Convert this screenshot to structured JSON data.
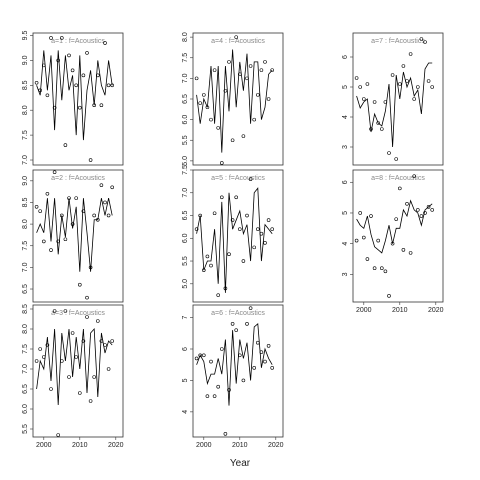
{
  "chart_data": [
    {
      "type": "lineplot",
      "title": "a=1  :  f=Acoustics",
      "x": [
        1998,
        1999,
        2000,
        2001,
        2002,
        2003,
        2004,
        2005,
        2006,
        2007,
        2008,
        2009,
        2010,
        2011,
        2012,
        2013,
        2014,
        2015,
        2016,
        2017,
        2018,
        2019
      ],
      "values": [
        8.5,
        8.3,
        9.2,
        8.4,
        9.1,
        7.6,
        9.2,
        8.2,
        9.1,
        8.4,
        8.7,
        7.5,
        9.1,
        7.4,
        8.4,
        8.8,
        8.1,
        9.0,
        8.5,
        8.3,
        9.0,
        8.5
      ],
      "points": [
        8.55,
        8.4,
        8.9,
        8.3,
        9.45,
        8.05,
        9.0,
        9.45,
        7.3,
        9.1,
        8.8,
        8.5,
        8.05,
        8.7,
        9.15,
        7.0,
        8.1,
        8.7,
        8.1,
        9.35,
        8.5,
        8.5
      ],
      "xlim": [
        1997,
        2022
      ],
      "ylim": [
        6.9,
        9.55
      ],
      "yticks": [
        {
          "value": 7,
          "label": "7.0"
        },
        7.5,
        {
          "value": 8,
          "label": "8.0"
        },
        8.5,
        {
          "value": 9,
          "label": "9.0"
        },
        9.5
      ]
    },
    {
      "type": "lineplot",
      "title": "a=2  :  f=Acoustics",
      "x": [
        1998,
        1999,
        2000,
        2001,
        2002,
        2003,
        2004,
        2005,
        2006,
        2007,
        2008,
        2009,
        2010,
        2011,
        2012,
        2013,
        2014,
        2015,
        2016,
        2017,
        2018,
        2019
      ],
      "values": [
        7.8,
        8.0,
        7.8,
        8.6,
        7.6,
        8.6,
        7.3,
        8.2,
        7.7,
        8.6,
        7.9,
        8.4,
        6.9,
        8.6,
        7.8,
        6.9,
        8.1,
        8.1,
        8.6,
        8.2,
        8.6,
        8.2
      ],
      "points": [
        8.4,
        8.3,
        7.6,
        8.7,
        7.4,
        9.2,
        7.6,
        8.2,
        7.65,
        8.6,
        8.0,
        8.6,
        6.6,
        8.3,
        6.3,
        7.0,
        8.2,
        8.1,
        8.9,
        8.5,
        8.2,
        8.85
      ],
      "xlim": [
        1997,
        2022
      ],
      "ylim": [
        6.2,
        9.25
      ],
      "yticks": [
        6.5,
        {
          "value": 7,
          "label": "7.0"
        },
        7.5,
        {
          "value": 8,
          "label": "8.0"
        },
        8.5,
        {
          "value": 9,
          "label": "9.0"
        }
      ]
    },
    {
      "type": "lineplot",
      "title": "a=3  :  f=Acoustics",
      "x": [
        1998,
        1999,
        2000,
        2001,
        2002,
        2003,
        2004,
        2005,
        2006,
        2007,
        2008,
        2009,
        2010,
        2011,
        2012,
        2013,
        2014,
        2015,
        2016,
        2017,
        2018,
        2019
      ],
      "values": [
        6.5,
        7.2,
        7.0,
        7.8,
        6.7,
        8.0,
        6.1,
        7.9,
        7.2,
        8.0,
        6.8,
        7.8,
        7.0,
        8.0,
        6.4,
        7.9,
        8.0,
        6.3,
        7.9,
        7.4,
        7.7,
        7.6
      ],
      "points": [
        7.2,
        7.5,
        7.3,
        7.6,
        6.5,
        8.45,
        5.35,
        7.2,
        8.45,
        6.8,
        7.9,
        7.3,
        6.4,
        7.7,
        8.3,
        6.2,
        6.8,
        8.2,
        7.7,
        7.6,
        7.0,
        7.7
      ],
      "xlim": [
        1997,
        2022
      ],
      "xticks": [
        2000,
        2010,
        2020
      ],
      "ylim": [
        5.3,
        8.6
      ],
      "yticks": [
        5.5,
        {
          "value": 6,
          "label": "6.0"
        },
        6.5,
        {
          "value": 7,
          "label": "7.0"
        },
        7.5,
        {
          "value": 8,
          "label": "8.0"
        },
        8.5
      ]
    },
    {
      "type": "lineplot",
      "title": "a=4  :  f=Acoustics",
      "x": [
        1998,
        1999,
        2000,
        2001,
        2002,
        2003,
        2004,
        2005,
        2006,
        2007,
        2008,
        2009,
        2010,
        2011,
        2012,
        2013,
        2014,
        2015,
        2016,
        2017,
        2018,
        2019
      ],
      "values": [
        6.6,
        5.9,
        6.5,
        6.3,
        7.3,
        5.9,
        7.3,
        5.2,
        7.3,
        6.2,
        7.7,
        6.3,
        7.4,
        6.7,
        7.6,
        5.9,
        7.4,
        7.4,
        6.0,
        6.3,
        7.1,
        7.2
      ],
      "points": [
        7.0,
        6.4,
        6.6,
        6.3,
        6.0,
        7.2,
        5.8,
        4.95,
        6.7,
        7.4,
        5.5,
        8.0,
        7.1,
        5.6,
        7.0,
        7.3,
        6.0,
        6.6,
        7.2,
        7.4,
        6.5,
        7.2
      ],
      "xlim": [
        1997,
        2022
      ],
      "ylim": [
        4.9,
        8.1
      ],
      "yticks": [
        {
          "value": 5,
          "label": "5.0"
        },
        5.5,
        {
          "value": 6,
          "label": "6.0"
        },
        6.5,
        {
          "value": 7,
          "label": "7.0"
        },
        7.5,
        {
          "value": 8,
          "label": "8.0"
        }
      ]
    },
    {
      "type": "lineplot",
      "title": "a=5  :  f=Acoustics",
      "x": [
        1998,
        1999,
        2000,
        2001,
        2002,
        2003,
        2004,
        2005,
        2006,
        2007,
        2008,
        2009,
        2010,
        2011,
        2012,
        2013,
        2014,
        2015,
        2016,
        2017,
        2018,
        2019
      ],
      "values": [
        6.1,
        6.5,
        5.3,
        5.5,
        5.5,
        6.2,
        5.0,
        6.8,
        4.8,
        7.0,
        6.2,
        6.4,
        6.6,
        6.1,
        6.3,
        5.5,
        7.0,
        7.1,
        5.5,
        6.3,
        6.2,
        6.1
      ],
      "points": [
        6.2,
        6.5,
        5.3,
        5.6,
        5.4,
        6.55,
        4.75,
        6.9,
        4.9,
        5.65,
        6.4,
        6.9,
        6.2,
        5.5,
        6.5,
        7.3,
        5.8,
        6.2,
        6.1,
        5.9,
        6.4,
        6.2
      ],
      "xlim": [
        1997,
        2022
      ],
      "ylim": [
        4.6,
        7.5
      ],
      "yticks": [
        {
          "value": 5,
          "label": "5.0"
        },
        5.5,
        {
          "value": 6,
          "label": "6.0"
        },
        6.5,
        {
          "value": 7,
          "label": "7.0"
        },
        7.5
      ]
    },
    {
      "type": "lineplot",
      "title": "a=6  :  f=Acoustics",
      "x": [
        1998,
        1999,
        2000,
        2001,
        2002,
        2003,
        2004,
        2005,
        2006,
        2007,
        2008,
        2009,
        2010,
        2011,
        2012,
        2013,
        2014,
        2015,
        2016,
        2017,
        2018,
        2019
      ],
      "values": [
        5.5,
        5.8,
        5.6,
        4.9,
        5.2,
        5.2,
        5.7,
        5.2,
        6.3,
        4.2,
        6.6,
        4.9,
        6.3,
        5.7,
        6.2,
        5.0,
        6.7,
        6.8,
        5.4,
        6.0,
        5.7,
        5.5
      ],
      "points": [
        5.7,
        5.8,
        5.8,
        4.5,
        5.6,
        4.5,
        4.8,
        6.0,
        3.3,
        4.7,
        6.8,
        6.6,
        5.8,
        5.0,
        6.8,
        7.3,
        5.4,
        6.2,
        5.9,
        5.6,
        6.1,
        5.4
      ],
      "xlim": [
        1997,
        2022
      ],
      "xticks": [
        2000,
        2010,
        2020
      ],
      "ylim": [
        3.2,
        7.4
      ],
      "yticks": [
        4,
        5,
        6,
        7
      ]
    },
    {
      "type": "lineplot",
      "title": "a=7  :  f=Acoustics",
      "x": [
        1998,
        1999,
        2000,
        2001,
        2002,
        2003,
        2004,
        2005,
        2006,
        2007,
        2008,
        2009,
        2010,
        2011,
        2012,
        2013,
        2014,
        2015,
        2016,
        2017,
        2018,
        2019
      ],
      "values": [
        4.7,
        4.3,
        4.5,
        4.6,
        3.5,
        4.1,
        3.8,
        3.7,
        4.2,
        5.1,
        3.0,
        5.4,
        4.6,
        5.5,
        5.0,
        5.3,
        4.7,
        4.9,
        4.1,
        5.6,
        5.8,
        5.8
      ],
      "points": [
        5.3,
        5.0,
        4.6,
        5.1,
        3.6,
        4.5,
        3.8,
        3.6,
        4.5,
        2.8,
        5.4,
        2.6,
        5.1,
        5.7,
        5.2,
        6.1,
        4.6,
        5.0,
        6.6,
        6.5,
        5.2,
        5.0
      ],
      "xlim": [
        1997,
        2022
      ],
      "ylim": [
        2.4,
        6.8
      ],
      "yticks": [
        3,
        4,
        5,
        6
      ]
    },
    {
      "type": "lineplot",
      "title": "a=8  :  f=Acoustics",
      "x": [
        1998,
        1999,
        2000,
        2001,
        2002,
        2003,
        2004,
        2005,
        2006,
        2007,
        2008,
        2009,
        2010,
        2011,
        2012,
        2013,
        2014,
        2015,
        2016,
        2017,
        2018,
        2019
      ],
      "values": [
        4.8,
        4.6,
        4.5,
        4.9,
        4.3,
        3.9,
        3.8,
        3.7,
        4.1,
        4.6,
        4.0,
        4.5,
        4.5,
        5.1,
        4.9,
        5.4,
        5.1,
        5.0,
        4.6,
        5.1,
        5.2,
        5.3
      ],
      "points": [
        4.1,
        5.0,
        4.2,
        3.5,
        4.9,
        3.2,
        4.1,
        3.2,
        3.1,
        2.3,
        4.0,
        4.8,
        5.8,
        3.8,
        5.3,
        3.7,
        6.2,
        5.1,
        4.9,
        5.0,
        5.2,
        5.1
      ],
      "xlim": [
        1997,
        2022
      ],
      "xticks": [
        2000,
        2010,
        2020
      ],
      "ylim": [
        2.1,
        6.4
      ],
      "yticks": [
        3,
        4,
        5,
        6
      ]
    }
  ],
  "xlabel": "Year"
}
